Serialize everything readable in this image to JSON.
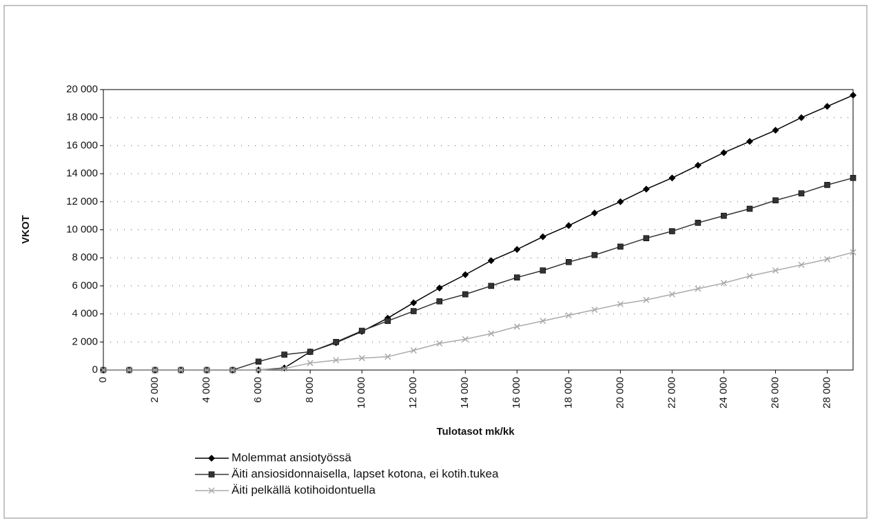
{
  "chart_data": {
    "type": "line",
    "x_label": "Tulotasot mk/kk",
    "y_label": "VKOT",
    "x": [
      0,
      1000,
      2000,
      3000,
      4000,
      5000,
      6000,
      7000,
      8000,
      9000,
      10000,
      11000,
      12000,
      13000,
      14000,
      15000,
      16000,
      17000,
      18000,
      19000,
      20000,
      21000,
      22000,
      23000,
      24000,
      25000,
      26000,
      27000,
      28000,
      29000
    ],
    "series": [
      {
        "name": "Molemmat ansiotyössä",
        "color": "#000000",
        "marker": "diamond",
        "values": [
          0,
          0,
          0,
          0,
          0,
          0,
          0,
          150,
          1300,
          1950,
          2750,
          3700,
          4800,
          5850,
          6800,
          7800,
          8600,
          9500,
          10300,
          11200,
          12000,
          12900,
          13700,
          14600,
          15500,
          16300,
          17100,
          18000,
          18800,
          19600
        ]
      },
      {
        "name": "Äiti ansiosidonnaisella, lapset kotona, ei kotih.tukea",
        "color": "#333333",
        "marker": "square",
        "values": [
          0,
          0,
          0,
          0,
          0,
          0,
          600,
          1100,
          1300,
          2000,
          2800,
          3500,
          4200,
          4900,
          5400,
          6000,
          6600,
          7100,
          7700,
          8200,
          8800,
          9400,
          9900,
          10500,
          11000,
          11500,
          12100,
          12600,
          13200,
          13700
        ]
      },
      {
        "name": "Äiti pelkällä kotihoidontuella",
        "color": "#aaaaaa",
        "marker": "x",
        "values": [
          0,
          0,
          0,
          0,
          0,
          0,
          0,
          100,
          500,
          700,
          850,
          950,
          1400,
          1900,
          2200,
          2600,
          3100,
          3500,
          3900,
          4300,
          4700,
          5000,
          5400,
          5800,
          6200,
          6700,
          7100,
          7500,
          7900,
          8400
        ]
      }
    ],
    "xlim": [
      0,
      29000
    ],
    "xticks": [
      0,
      {
        "value": 2000,
        "label": "2 000"
      },
      {
        "value": 4000,
        "label": "4 000"
      },
      {
        "value": 6000,
        "label": "6 000"
      },
      {
        "value": 8000,
        "label": "8 000"
      },
      {
        "value": 10000,
        "label": "10 000"
      },
      {
        "value": 12000,
        "label": "12 000"
      },
      {
        "value": 14000,
        "label": "14 000"
      },
      {
        "value": 16000,
        "label": "16 000"
      },
      {
        "value": 18000,
        "label": "18 000"
      },
      {
        "value": 20000,
        "label": "20 000"
      },
      {
        "value": 22000,
        "label": "22 000"
      },
      {
        "value": 24000,
        "label": "24 000"
      },
      {
        "value": 26000,
        "label": "26 000"
      },
      {
        "value": 28000,
        "label": "28 000"
      }
    ],
    "ylim": [
      0,
      20000
    ],
    "yticks": [
      0,
      {
        "value": 2000,
        "label": "2 000"
      },
      {
        "value": 4000,
        "label": "4 000"
      },
      {
        "value": 6000,
        "label": "6 000"
      },
      {
        "value": 8000,
        "label": "8 000"
      },
      {
        "value": 10000,
        "label": "10 000"
      },
      {
        "value": 12000,
        "label": "12 000"
      },
      {
        "value": 14000,
        "label": "14 000"
      },
      {
        "value": 16000,
        "label": "16 000"
      },
      {
        "value": 18000,
        "label": "18 000"
      },
      {
        "value": 20000,
        "label": "20 000"
      }
    ],
    "grid": true,
    "legend": "bottom"
  }
}
